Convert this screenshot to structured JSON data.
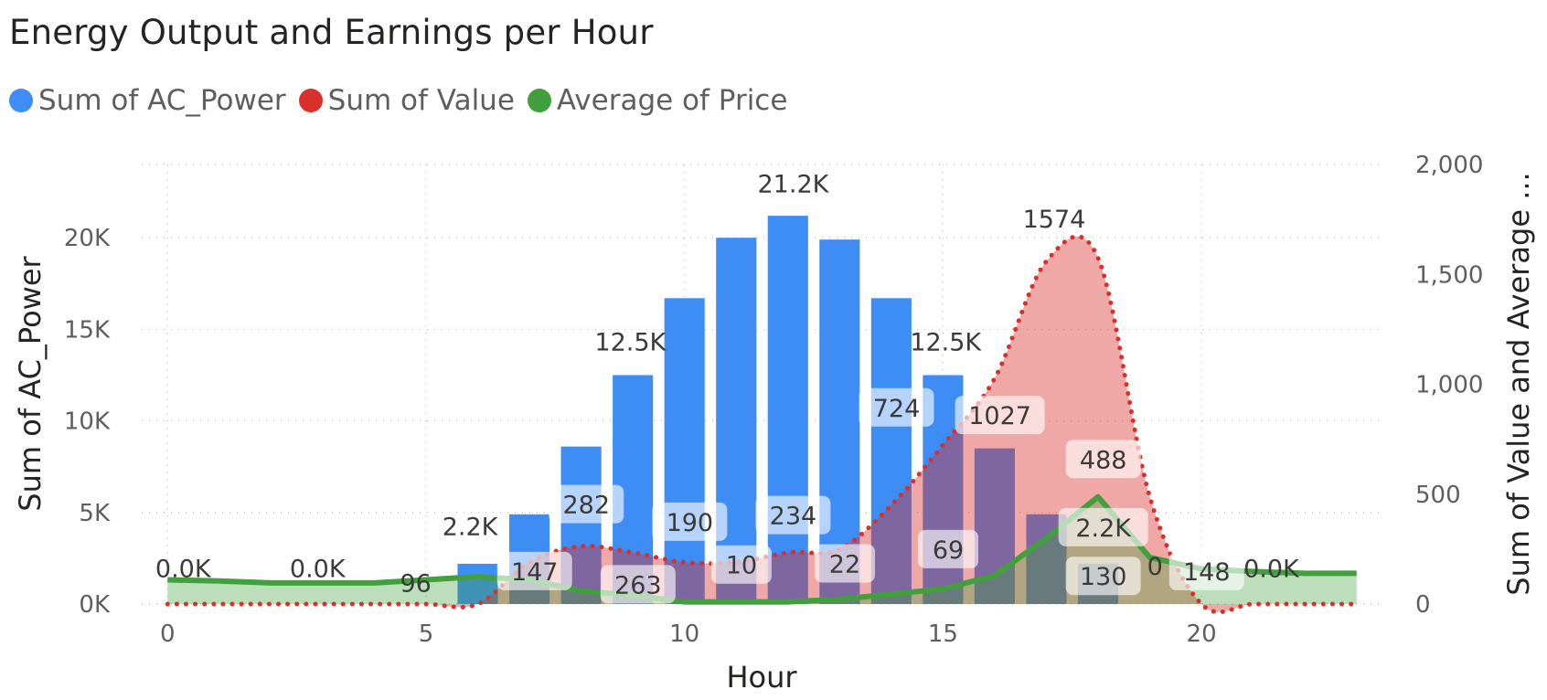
{
  "title": "Energy Output and Earnings per Hour",
  "legend": [
    {
      "label": "Sum of AC_Power",
      "color": "#3d8df5"
    },
    {
      "label": "Sum of Value",
      "color": "#d9302c"
    },
    {
      "label": "Average of Price",
      "color": "#41a03d"
    }
  ],
  "chart_data": {
    "type": "bar",
    "xlabel": "Hour",
    "ylabel": "Sum of AC_Power",
    "y2label": "Sum of Value and Average ...",
    "xlim": [
      -0.5,
      23.5
    ],
    "ylim": [
      0,
      24000
    ],
    "y2lim": [
      0,
      2000
    ],
    "x_ticks": [
      "0",
      "5",
      "10",
      "15",
      "20"
    ],
    "y_ticks": [
      "0K",
      "5K",
      "10K",
      "15K",
      "20K"
    ],
    "y2_ticks": [
      "0",
      "500",
      "1,000",
      "1,500",
      "2,000"
    ],
    "grid": true,
    "legend_position": "top-left",
    "hours": [
      0,
      1,
      2,
      3,
      4,
      5,
      6,
      7,
      8,
      9,
      10,
      11,
      12,
      13,
      14,
      15,
      16,
      17,
      18,
      19,
      20,
      21,
      22,
      23
    ],
    "series": [
      {
        "name": "Sum of AC_Power",
        "type": "bar",
        "axis": "left",
        "color": "#3d8df5",
        "values": [
          0,
          0,
          0,
          0,
          0,
          0,
          2200,
          4900,
          8600,
          12500,
          16700,
          20000,
          21200,
          19900,
          16700,
          12500,
          8500,
          4900,
          2200,
          0,
          0,
          0,
          0,
          0
        ]
      },
      {
        "name": "Sum of Value",
        "type": "area-dotted",
        "axis": "right",
        "color": "#d9302c",
        "values": [
          0,
          0,
          0,
          0,
          0,
          0,
          0,
          190,
          263,
          234,
          190,
          190,
          234,
          250,
          450,
          724,
          1027,
          1560,
          1574,
          488,
          0,
          0,
          0,
          0
        ]
      },
      {
        "name": "Average of Price",
        "type": "line-area",
        "axis": "right",
        "color": "#41a03d",
        "values": [
          110,
          105,
          96,
          96,
          96,
          110,
          125,
          110,
          60,
          40,
          10,
          10,
          10,
          22,
          45,
          69,
          130,
          300,
          488,
          212,
          160,
          148,
          140,
          140
        ]
      }
    ],
    "data_labels": [
      {
        "text": "0.0K",
        "x": 0.6,
        "y2": 165,
        "box": false
      },
      {
        "text": "0.0K",
        "x": 5.8,
        "y2": 165,
        "box": false
      },
      {
        "text": "96",
        "x": 9.6,
        "y2": 98,
        "box": false
      },
      {
        "text": "2.2K",
        "x": 11.7,
        "y2": 355,
        "box": false
      },
      {
        "text": "147",
        "x": 14.2,
        "y2": 150,
        "box": true
      },
      {
        "text": "282",
        "x": 16.2,
        "y2": 455,
        "box": true
      },
      {
        "text": "263",
        "x": 18.2,
        "y2": 90,
        "box": true
      },
      {
        "text": "12.5K",
        "x": 17.9,
        "y2": 1195,
        "box": false
      },
      {
        "text": "190",
        "x": 20.2,
        "y2": 375,
        "box": true
      },
      {
        "text": "10",
        "x": 22.2,
        "y2": 180,
        "box": true
      },
      {
        "text": "234",
        "x": 24.2,
        "y2": 405,
        "box": true
      },
      {
        "text": "21.2K",
        "x": 24.2,
        "y2": 1915,
        "box": false
      },
      {
        "text": "22",
        "x": 26.2,
        "y2": 185,
        "box": true
      },
      {
        "text": "724",
        "x": 28.2,
        "y2": 895,
        "box": true
      },
      {
        "text": "12.5K",
        "x": 30.1,
        "y2": 1195,
        "box": false
      },
      {
        "text": "69",
        "x": 30.2,
        "y2": 250,
        "box": true
      },
      {
        "text": "1027",
        "x": 32.2,
        "y2": 860,
        "box": true
      },
      {
        "text": "1574",
        "x": 34.3,
        "y2": 1755,
        "box": false
      },
      {
        "text": "488",
        "x": 36.2,
        "y2": 660,
        "box": true
      },
      {
        "text": "2.2K",
        "x": 36.2,
        "y2": 350,
        "box": true
      },
      {
        "text": "130",
        "x": 36.2,
        "y2": 128,
        "box": true
      },
      {
        "text": "0",
        "x": 38.2,
        "y2": 175,
        "box": false
      },
      {
        "text": "148",
        "x": 40.2,
        "y2": 150,
        "box": true
      },
      {
        "text": "0.0K",
        "x": 42.7,
        "y2": 165,
        "box": false
      }
    ]
  }
}
